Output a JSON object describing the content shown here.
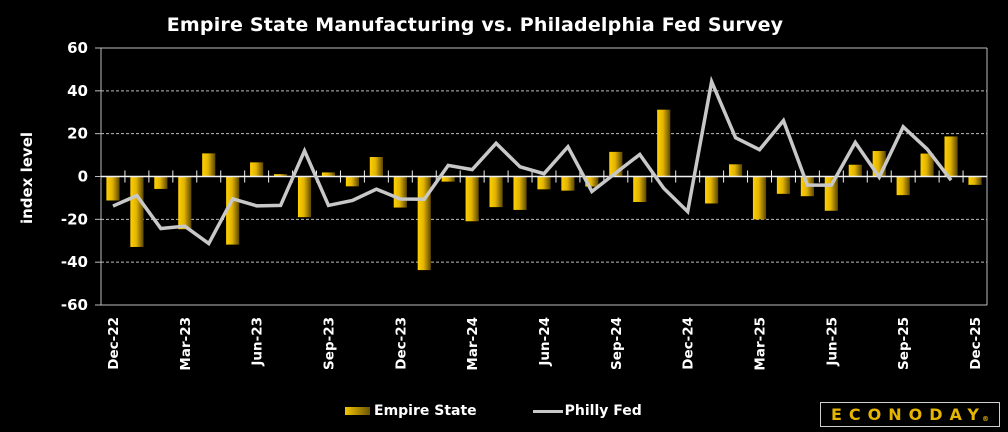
{
  "chart_data": {
    "type": "bar",
    "title": "Empire State Manufacturing vs. Philadelphia Fed Survey",
    "xlabel": "",
    "ylabel": "index level",
    "ylim": [
      -60,
      60
    ],
    "yticks": [
      60,
      40,
      20,
      0,
      -20,
      -40,
      -60
    ],
    "grid": "horizontal-dashed",
    "legend": "bottom-center",
    "categories": [
      "Dec-22",
      "Jan-23",
      "Feb-23",
      "Mar-23",
      "Apr-23",
      "May-23",
      "Jun-23",
      "Jul-23",
      "Aug-23",
      "Sep-23",
      "Oct-23",
      "Nov-23",
      "Dec-23",
      "Jan-24",
      "Feb-24",
      "Mar-24",
      "Apr-24",
      "May-24",
      "Jun-24",
      "Jul-24",
      "Aug-24",
      "Sep-24",
      "Oct-24",
      "Nov-24",
      "Dec-24",
      "Jan-25",
      "Feb-25",
      "Mar-25",
      "Apr-25",
      "May-25",
      "Jun-25",
      "Jul-25",
      "Aug-25",
      "Sep-25",
      "Oct-25",
      "Nov-25",
      "Dec-25"
    ],
    "xtick_labels": [
      "Dec-22",
      "Mar-23",
      "Jun-23",
      "Sep-23",
      "Dec-23",
      "Mar-24",
      "Jun-24",
      "Sep-24",
      "Dec-24",
      "Mar-25",
      "Jun-25",
      "Sep-25",
      "Dec-25"
    ],
    "series": [
      {
        "name": "Empire State",
        "type": "bar",
        "color": "#f5c400",
        "values": [
          -11.2,
          -32.9,
          -5.8,
          -24.6,
          10.8,
          -31.8,
          6.6,
          1.1,
          -19.0,
          1.9,
          -4.6,
          9.1,
          -14.5,
          -43.7,
          -2.4,
          -20.9,
          -14.3,
          -15.6,
          -6.0,
          -6.6,
          -4.7,
          11.5,
          -11.9,
          31.2,
          0.2,
          -12.6,
          5.7,
          -20.0,
          -8.1,
          -9.2,
          -16.0,
          5.5,
          11.9,
          -8.7,
          10.7,
          18.7,
          -3.9
        ]
      },
      {
        "name": "Philly Fed",
        "type": "line",
        "color": "#c8c8c8",
        "values": [
          -13.8,
          -8.9,
          -24.3,
          -23.2,
          -31.3,
          -10.4,
          -13.7,
          -13.5,
          12.0,
          -13.5,
          -11.2,
          -5.9,
          -10.5,
          -10.6,
          5.2,
          3.2,
          15.5,
          4.5,
          1.3,
          13.9,
          -7.0,
          1.7,
          10.3,
          -5.5,
          -16.4,
          44.3,
          18.1,
          12.5,
          26.1,
          -4.0,
          -4.0,
          15.9,
          -0.3,
          23.2,
          12.8,
          -1.7,
          null
        ]
      }
    ]
  },
  "branding": {
    "logo_text": "ECONODAY",
    "logo_mark": "®",
    "logo_color": "#e5b500"
  }
}
